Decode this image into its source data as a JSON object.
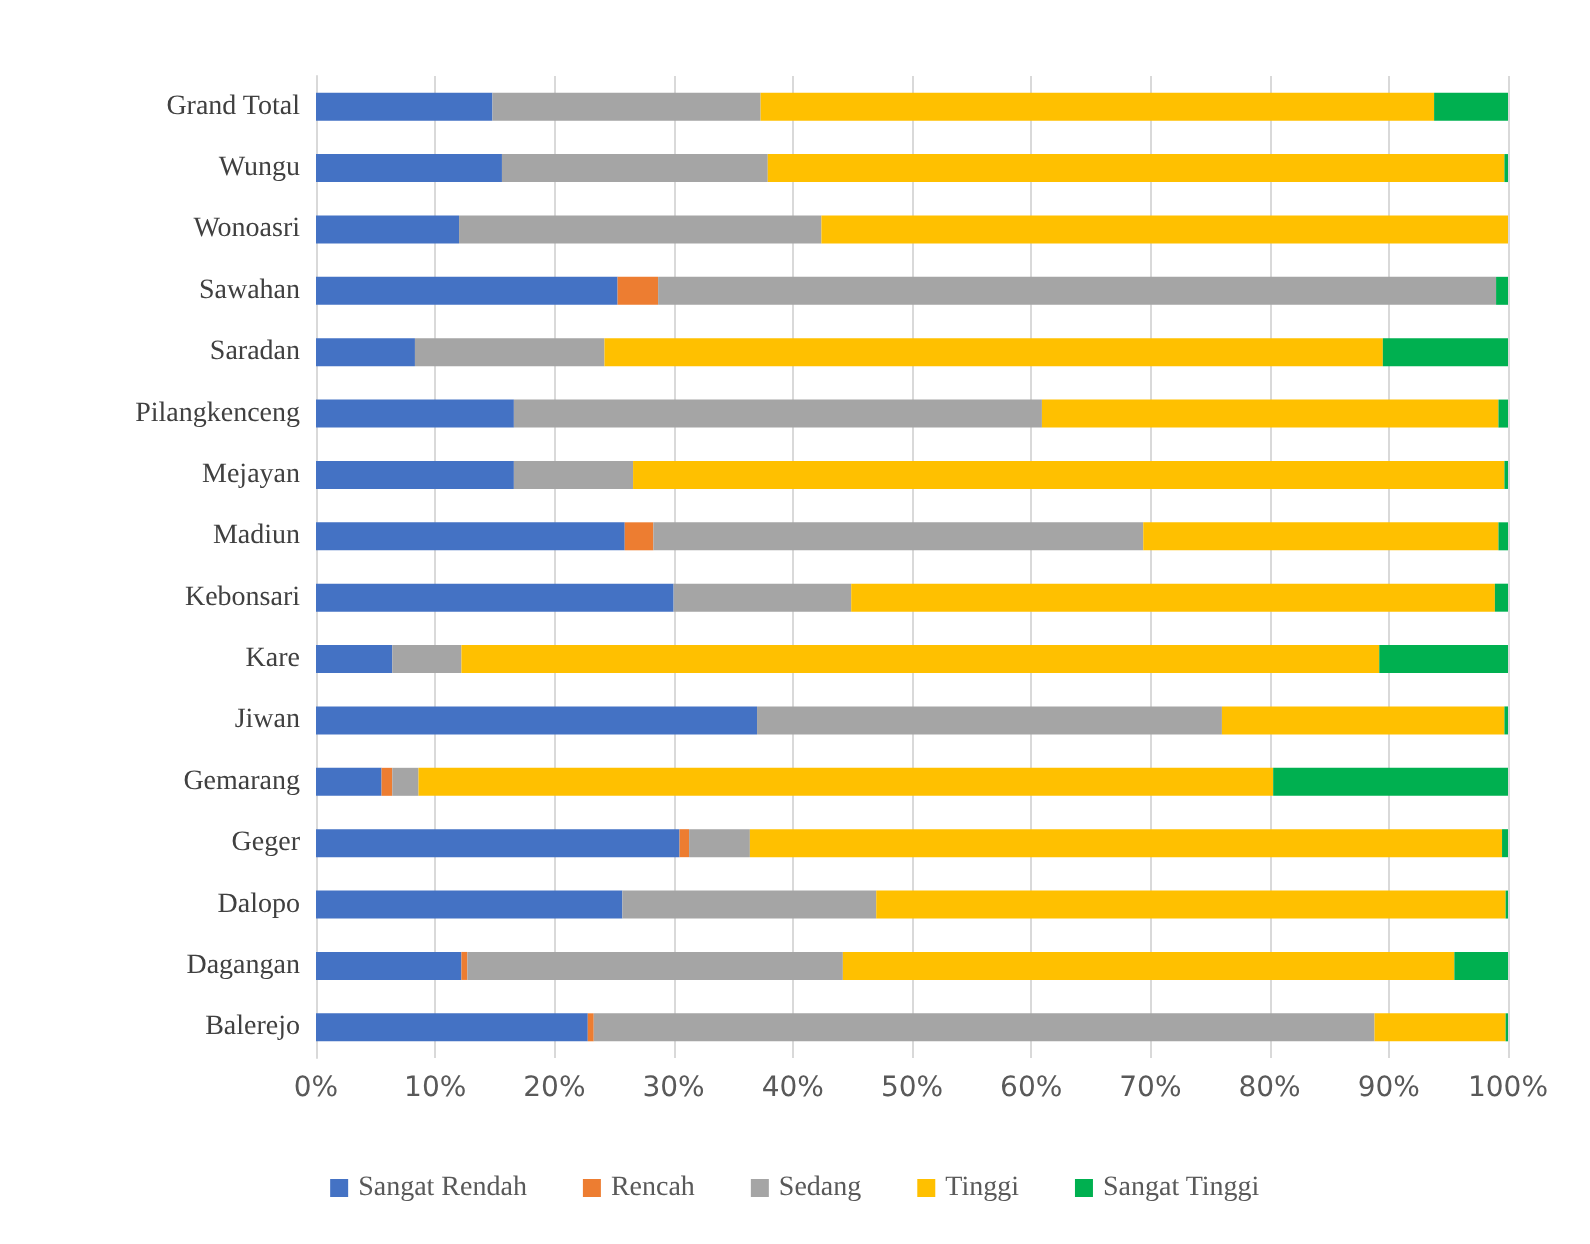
{
  "chart_data": {
    "type": "bar",
    "orientation": "horizontal",
    "stacked": true,
    "categories": [
      "Grand Total",
      "Wungu",
      "Wonoasri",
      "Sawahan",
      "Saradan",
      "Pilangkenceng",
      "Mejayan",
      "Madiun",
      "Kebonsari",
      "Kare",
      "Jiwan",
      "Gemarang",
      "Geger",
      "Dalopo",
      "Dagangan",
      "Balerejo"
    ],
    "series": [
      {
        "name": "Sangat Rendah",
        "color": "#4472c4",
        "values": [
          14.8,
          15.6,
          12.0,
          25.3,
          8.3,
          16.6,
          16.6,
          25.9,
          30.0,
          6.4,
          37.0,
          5.5,
          30.5,
          25.7,
          12.2,
          22.8
        ]
      },
      {
        "name": "Rencah",
        "color": "#ed7d31",
        "values": [
          0,
          0,
          0,
          3.4,
          0,
          0,
          0,
          2.4,
          0,
          0,
          0,
          0.9,
          0.8,
          0,
          0.5,
          0.5
        ]
      },
      {
        "name": "Sedang",
        "color": "#a5a5a5",
        "values": [
          22.5,
          22.3,
          30.4,
          70.3,
          15.9,
          44.3,
          10.0,
          41.1,
          14.9,
          5.8,
          39.0,
          2.2,
          5.1,
          21.3,
          31.5,
          65.5
        ]
      },
      {
        "name": "Tinggi",
        "color": "#ffc000",
        "values": [
          56.5,
          61.8,
          57.6,
          0,
          65.3,
          38.3,
          73.1,
          29.8,
          54.0,
          77.0,
          23.7,
          71.7,
          63.1,
          52.8,
          51.3,
          11.0
        ]
      },
      {
        "name": "Sangat Tinggi",
        "color": "#00b050",
        "values": [
          6.2,
          0.3,
          0,
          1.0,
          10.5,
          0.8,
          0.3,
          0.8,
          1.1,
          10.8,
          0.3,
          19.7,
          0.5,
          0.2,
          4.5,
          0.2
        ]
      }
    ],
    "xlim": [
      0,
      100
    ],
    "xticks": [
      {
        "value": 0,
        "label": "0%"
      },
      {
        "value": 10,
        "label": "10%"
      },
      {
        "value": 20,
        "label": "20%"
      },
      {
        "value": 30,
        "label": "30%"
      },
      {
        "value": 40,
        "label": "40%"
      },
      {
        "value": 50,
        "label": "50%"
      },
      {
        "value": 60,
        "label": "60%"
      },
      {
        "value": 70,
        "label": "70%"
      },
      {
        "value": 80,
        "label": "80%"
      },
      {
        "value": 90,
        "label": "90%"
      },
      {
        "value": 100,
        "label": "100%"
      }
    ],
    "grid": "x",
    "legend": "bottom"
  }
}
